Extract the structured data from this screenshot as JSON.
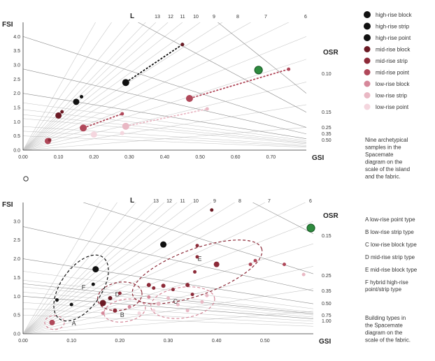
{
  "chart_data": [
    {
      "type": "scatter",
      "xlabel": "GSI",
      "ylabel": "FSI",
      "xlim": [
        0,
        0.8
      ],
      "ylim": [
        0,
        4.5
      ],
      "x_ticks": [
        "0.00",
        "0.10",
        "0.20",
        "0.30",
        "0.40",
        "0.50",
        "0.60",
        "0.70"
      ],
      "y_ticks": [
        "0.0",
        "0.5",
        "1.0",
        "1.5",
        "2.0",
        "2.5",
        "3.0",
        "3.5",
        "4.0"
      ],
      "l_label": "L",
      "l_values": [
        "13",
        "12",
        "11",
        "10",
        "9",
        "8",
        "7",
        "6"
      ],
      "osr_label": "OSR",
      "osr_values": [
        "0.10",
        "0.15",
        "0.25",
        "0.35",
        "0.50"
      ],
      "legend": [
        {
          "name": "high-rise block",
          "color": "#111111"
        },
        {
          "name": "high-rise strip",
          "color": "#111111"
        },
        {
          "name": "high-rise point",
          "color": "#111111"
        },
        {
          "name": "mid-rise block",
          "color": "#6b1a24"
        },
        {
          "name": "mid-rise strip",
          "color": "#8c2a38"
        },
        {
          "name": "mid-rise point",
          "color": "#b0485a"
        },
        {
          "name": "low-rise block",
          "color": "#d6889a"
        },
        {
          "name": "low-rise strip",
          "color": "#e9b8c4"
        },
        {
          "name": "low-rise point",
          "color": "#f4d6de"
        }
      ],
      "caption": [
        "Nine archetypical",
        "samples in the",
        "Spacemate",
        "diagram on the",
        "scale of the island",
        "and the fabric."
      ],
      "series": [
        {
          "x": [
            0.29,
            0.45
          ],
          "y": [
            2.38,
            3.72
          ],
          "color": "#111111",
          "style": "dashed",
          "r": 5
        },
        {
          "x": [
            0.47,
            0.75
          ],
          "y": [
            1.82,
            2.85
          ],
          "color": "#b0485a",
          "style": "dashed",
          "r": 5
        },
        {
          "x": [
            0.17,
            0.28
          ],
          "y": [
            0.78,
            1.28
          ],
          "color": "#b0485a",
          "style": "dashed",
          "r": 5
        },
        {
          "x": [
            0.29,
            0.52
          ],
          "y": [
            0.84,
            1.45
          ],
          "color": "#e9b8c4",
          "style": "dashed",
          "r": 5
        }
      ],
      "points": [
        {
          "x": 0.15,
          "y": 1.7,
          "color": "#111111",
          "r": 4.5
        },
        {
          "x": 0.165,
          "y": 1.88,
          "color": "#111111",
          "r": 2.5
        },
        {
          "x": 0.45,
          "y": 3.72,
          "color": "#6b1a24",
          "r": 2.5
        },
        {
          "x": 0.1,
          "y": 1.22,
          "color": "#6b1a24",
          "r": 4.5
        },
        {
          "x": 0.11,
          "y": 1.35,
          "color": "#6b1a24",
          "r": 2.5
        },
        {
          "x": 0.07,
          "y": 0.32,
          "color": "#b0485a",
          "r": 4.5
        },
        {
          "x": 0.075,
          "y": 0.36,
          "color": "#8c2a38",
          "r": 2.5
        },
        {
          "x": 0.2,
          "y": 0.55,
          "color": "#f4d6de",
          "r": 4.5
        },
        {
          "x": 0.28,
          "y": 0.6,
          "color": "#f4d6de",
          "r": 3
        },
        {
          "x": 0.665,
          "y": 2.82,
          "color": "#2e8b3e",
          "r": 5.5
        }
      ]
    },
    {
      "type": "scatter",
      "xlabel": "GSI",
      "ylabel": "FSI",
      "xlim": [
        0,
        0.6
      ],
      "ylim": [
        0,
        3.5
      ],
      "x_ticks": [
        "0.00",
        "0.10",
        "0.20",
        "0.30",
        "0.40",
        "0.50"
      ],
      "y_ticks": [
        "0.0",
        "0.5",
        "1.0",
        "1.5",
        "2.0",
        "2.5",
        "3.0"
      ],
      "l_label": "L",
      "l_values": [
        "13",
        "12",
        "11",
        "10",
        "9",
        "8",
        "7",
        "6"
      ],
      "osr_label": "OSR",
      "osr_values": [
        "0.15",
        "0.25",
        "0.35",
        "0.50",
        "0.75",
        "1.00"
      ],
      "zones": [
        {
          "label": "A",
          "code": "A",
          "desc": "low-rise point type"
        },
        {
          "label": "B",
          "code": "B",
          "desc": "low-rise strip type"
        },
        {
          "label": "C",
          "code": "C",
          "desc": "low-rise block type"
        },
        {
          "label": "D",
          "code": "D",
          "desc": "mid-rise strip type"
        },
        {
          "label": "E",
          "code": "E",
          "desc": "mid-rise block type"
        },
        {
          "label": "F",
          "code": "F",
          "desc": "hybrid high-rise point/strip type"
        }
      ],
      "caption": [
        "Building types in",
        "the Spacemate",
        "diagram on the",
        "scale of the fabric."
      ],
      "points": [
        {
          "x": 0.07,
          "y": 0.9,
          "color": "#111111",
          "r": 2.5
        },
        {
          "x": 0.1,
          "y": 0.78,
          "color": "#111111",
          "r": 2.5
        },
        {
          "x": 0.15,
          "y": 1.72,
          "color": "#111111",
          "r": 4.5
        },
        {
          "x": 0.145,
          "y": 1.32,
          "color": "#111111",
          "r": 2.5
        },
        {
          "x": 0.29,
          "y": 2.38,
          "color": "#111111",
          "r": 4.5
        },
        {
          "x": 0.39,
          "y": 3.3,
          "color": "#6b1a24",
          "r": 2.5
        },
        {
          "x": 0.06,
          "y": 0.3,
          "color": "#b0485a",
          "r": 4
        },
        {
          "x": 0.165,
          "y": 0.82,
          "color": "#6b1a24",
          "r": 4.5
        },
        {
          "x": 0.18,
          "y": 0.95,
          "color": "#6b1a24",
          "r": 3
        },
        {
          "x": 0.19,
          "y": 0.62,
          "color": "#8c2a38",
          "r": 3
        },
        {
          "x": 0.2,
          "y": 1.08,
          "color": "#8c2a38",
          "r": 2.5
        },
        {
          "x": 0.165,
          "y": 0.55,
          "color": "#d6889a",
          "r": 2.5
        },
        {
          "x": 0.22,
          "y": 0.72,
          "color": "#d6889a",
          "r": 2.5
        },
        {
          "x": 0.26,
          "y": 1.3,
          "color": "#8c2a38",
          "r": 3
        },
        {
          "x": 0.27,
          "y": 1.22,
          "color": "#8c2a38",
          "r": 2.5
        },
        {
          "x": 0.29,
          "y": 1.28,
          "color": "#8c2a38",
          "r": 3
        },
        {
          "x": 0.31,
          "y": 1.18,
          "color": "#8c2a38",
          "r": 2.5
        },
        {
          "x": 0.34,
          "y": 1.3,
          "color": "#8c2a38",
          "r": 3
        },
        {
          "x": 0.35,
          "y": 1.05,
          "color": "#8c2a38",
          "r": 2.5
        },
        {
          "x": 0.36,
          "y": 2.05,
          "color": "#8c2a38",
          "r": 2.5
        },
        {
          "x": 0.36,
          "y": 2.35,
          "color": "#8c2a38",
          "r": 2.5
        },
        {
          "x": 0.355,
          "y": 1.65,
          "color": "#8c2a38",
          "r": 2.5
        },
        {
          "x": 0.4,
          "y": 1.85,
          "color": "#8c2a38",
          "r": 4
        },
        {
          "x": 0.47,
          "y": 1.85,
          "color": "#b0485a",
          "r": 2.5
        },
        {
          "x": 0.48,
          "y": 1.95,
          "color": "#b0485a",
          "r": 2.5
        },
        {
          "x": 0.54,
          "y": 1.85,
          "color": "#b0485a",
          "r": 2.5
        },
        {
          "x": 0.58,
          "y": 1.58,
          "color": "#e9b8c4",
          "r": 2.5
        },
        {
          "x": 0.28,
          "y": 0.8,
          "color": "#e9b8c4",
          "r": 3
        },
        {
          "x": 0.3,
          "y": 0.95,
          "color": "#e9b8c4",
          "r": 2.5
        },
        {
          "x": 0.32,
          "y": 0.78,
          "color": "#e9b8c4",
          "r": 2.5
        },
        {
          "x": 0.34,
          "y": 0.62,
          "color": "#e9b8c4",
          "r": 2.5
        },
        {
          "x": 0.37,
          "y": 0.85,
          "color": "#e9b8c4",
          "r": 2.5
        },
        {
          "x": 0.38,
          "y": 1.02,
          "color": "#e9b8c4",
          "r": 2.5
        },
        {
          "x": 0.26,
          "y": 0.98,
          "color": "#d6889a",
          "r": 2.5
        },
        {
          "x": 0.24,
          "y": 0.55,
          "color": "#f4d6de",
          "r": 2.5
        },
        {
          "x": 0.27,
          "y": 0.62,
          "color": "#f4d6de",
          "r": 2.5
        },
        {
          "x": 0.595,
          "y": 2.82,
          "color": "#2e8b3e",
          "r": 5.5
        }
      ]
    }
  ]
}
